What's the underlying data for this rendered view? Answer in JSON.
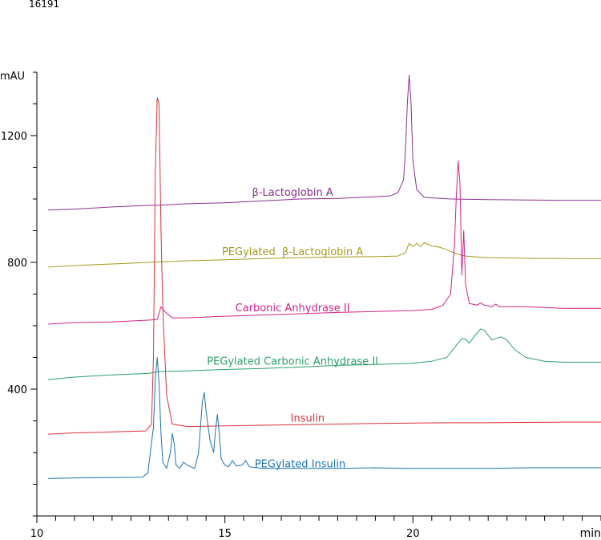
{
  "header": {
    "id": "16191"
  },
  "chart_data": {
    "type": "line",
    "title": "",
    "xlabel": "min",
    "ylabel": "mAU",
    "xlim": [
      10,
      25
    ],
    "ylim": [
      0,
      1400
    ],
    "xticks_labeled": [
      "10",
      "15",
      "20"
    ],
    "yticks_labeled": [
      "400",
      "800",
      "1200"
    ],
    "grid": false,
    "legend": "none",
    "series": [
      {
        "name": "β-Lactoglobin A",
        "color": "#8b2f8f",
        "points": [
          [
            10.3,
            965
          ],
          [
            11,
            968
          ],
          [
            12,
            975
          ],
          [
            13,
            980
          ],
          [
            13.2,
            980
          ],
          [
            14,
            985
          ],
          [
            15,
            988
          ],
          [
            16,
            994
          ],
          [
            17,
            1000
          ],
          [
            18,
            1002
          ],
          [
            19,
            1007
          ],
          [
            19.4,
            1010
          ],
          [
            19.6,
            1020
          ],
          [
            19.75,
            1060
          ],
          [
            19.8,
            1150
          ],
          [
            19.85,
            1300
          ],
          [
            19.9,
            1390
          ],
          [
            19.95,
            1300
          ],
          [
            20.0,
            1120
          ],
          [
            20.1,
            1030
          ],
          [
            20.3,
            1005
          ],
          [
            21,
            1000
          ],
          [
            22,
            998
          ],
          [
            23,
            997
          ],
          [
            24,
            996
          ],
          [
            25,
            996
          ]
        ]
      },
      {
        "name": "PEGylated  β-Lactoglobin A",
        "color": "#a39a1a",
        "points": [
          [
            10.3,
            785
          ],
          [
            11,
            790
          ],
          [
            12,
            795
          ],
          [
            13,
            800
          ],
          [
            14,
            805
          ],
          [
            15,
            808
          ],
          [
            16,
            812
          ],
          [
            17,
            815
          ],
          [
            18,
            817
          ],
          [
            19,
            818
          ],
          [
            19.6,
            820
          ],
          [
            19.8,
            830
          ],
          [
            19.9,
            860
          ],
          [
            20.0,
            850
          ],
          [
            20.1,
            860
          ],
          [
            20.2,
            850
          ],
          [
            20.3,
            862
          ],
          [
            20.5,
            852
          ],
          [
            20.7,
            848
          ],
          [
            20.9,
            840
          ],
          [
            21.0,
            835
          ],
          [
            21.2,
            825
          ],
          [
            21.4,
            820
          ],
          [
            21.6,
            818
          ],
          [
            22,
            815
          ],
          [
            23,
            813
          ],
          [
            24,
            812
          ],
          [
            25,
            812
          ]
        ]
      },
      {
        "name": "Carbonic Anhydrase II",
        "color": "#d6218a",
        "points": [
          [
            10.3,
            605
          ],
          [
            11,
            610
          ],
          [
            12,
            612
          ],
          [
            13,
            618
          ],
          [
            13.2,
            620
          ],
          [
            13.3,
            660
          ],
          [
            13.4,
            645
          ],
          [
            13.6,
            625
          ],
          [
            14,
            625
          ],
          [
            15,
            630
          ],
          [
            16,
            634
          ],
          [
            17,
            638
          ],
          [
            18,
            642
          ],
          [
            19,
            645
          ],
          [
            20,
            648
          ],
          [
            20.5,
            652
          ],
          [
            20.8,
            665
          ],
          [
            21.0,
            700
          ],
          [
            21.1,
            850
          ],
          [
            21.15,
            1000
          ],
          [
            21.2,
            1120
          ],
          [
            21.25,
            1050
          ],
          [
            21.3,
            760
          ],
          [
            21.35,
            900
          ],
          [
            21.4,
            730
          ],
          [
            21.5,
            670
          ],
          [
            21.7,
            665
          ],
          [
            21.8,
            672
          ],
          [
            21.9,
            665
          ],
          [
            22.1,
            660
          ],
          [
            22.2,
            668
          ],
          [
            22.3,
            660
          ],
          [
            23,
            660
          ],
          [
            24,
            655
          ],
          [
            25,
            655
          ]
        ]
      },
      {
        "name": "PEGylated Carbonic Anhydrase II",
        "color": "#2aa06a",
        "points": [
          [
            10.3,
            430
          ],
          [
            11,
            438
          ],
          [
            12,
            445
          ],
          [
            13,
            450
          ],
          [
            13.2,
            455
          ],
          [
            14,
            458
          ],
          [
            15,
            462
          ],
          [
            16,
            465
          ],
          [
            17,
            470
          ],
          [
            18,
            475
          ],
          [
            19,
            478
          ],
          [
            20,
            482
          ],
          [
            20.5,
            488
          ],
          [
            20.9,
            500
          ],
          [
            21.1,
            530
          ],
          [
            21.3,
            560
          ],
          [
            21.4,
            558
          ],
          [
            21.5,
            545
          ],
          [
            21.65,
            570
          ],
          [
            21.8,
            590
          ],
          [
            21.9,
            585
          ],
          [
            22.0,
            570
          ],
          [
            22.1,
            555
          ],
          [
            22.2,
            560
          ],
          [
            22.35,
            565
          ],
          [
            22.5,
            555
          ],
          [
            22.7,
            525
          ],
          [
            23,
            500
          ],
          [
            23.5,
            488
          ],
          [
            24,
            485
          ],
          [
            25,
            485
          ]
        ]
      },
      {
        "name": "Insulin",
        "color": "#e0303a",
        "points": [
          [
            10.3,
            258
          ],
          [
            11,
            262
          ],
          [
            12,
            265
          ],
          [
            12.9,
            268
          ],
          [
            13.05,
            290
          ],
          [
            13.1,
            500
          ],
          [
            13.15,
            1080
          ],
          [
            13.2,
            1320
          ],
          [
            13.25,
            1300
          ],
          [
            13.3,
            900
          ],
          [
            13.35,
            650
          ],
          [
            13.45,
            380
          ],
          [
            13.6,
            290
          ],
          [
            14,
            282
          ],
          [
            15,
            284
          ],
          [
            16,
            286
          ],
          [
            17,
            288
          ],
          [
            18,
            290
          ],
          [
            19,
            292
          ],
          [
            20,
            293
          ],
          [
            21,
            294
          ],
          [
            22,
            294
          ],
          [
            23,
            295
          ],
          [
            24,
            296
          ],
          [
            25,
            296
          ]
        ]
      },
      {
        "name": "PEGylated Insulin",
        "color": "#1a74b8",
        "points": [
          [
            10.3,
            118
          ],
          [
            11,
            120
          ],
          [
            12,
            121
          ],
          [
            12.8,
            122
          ],
          [
            12.95,
            135
          ],
          [
            13.1,
            280
          ],
          [
            13.15,
            430
          ],
          [
            13.2,
            500
          ],
          [
            13.25,
            420
          ],
          [
            13.3,
            260
          ],
          [
            13.35,
            170
          ],
          [
            13.45,
            150
          ],
          [
            13.55,
            200
          ],
          [
            13.6,
            260
          ],
          [
            13.65,
            230
          ],
          [
            13.7,
            160
          ],
          [
            13.8,
            150
          ],
          [
            13.9,
            170
          ],
          [
            14.0,
            160
          ],
          [
            14.2,
            150
          ],
          [
            14.3,
            200
          ],
          [
            14.4,
            360
          ],
          [
            14.45,
            390
          ],
          [
            14.5,
            330
          ],
          [
            14.6,
            240
          ],
          [
            14.7,
            200
          ],
          [
            14.75,
            270
          ],
          [
            14.8,
            320
          ],
          [
            14.85,
            260
          ],
          [
            14.9,
            180
          ],
          [
            15.0,
            160
          ],
          [
            15.1,
            155
          ],
          [
            15.2,
            175
          ],
          [
            15.3,
            158
          ],
          [
            15.45,
            160
          ],
          [
            15.55,
            175
          ],
          [
            15.65,
            155
          ],
          [
            16,
            150
          ],
          [
            17,
            150
          ],
          [
            18,
            150
          ],
          [
            19,
            152
          ],
          [
            20,
            150
          ],
          [
            21,
            150
          ],
          [
            22,
            150
          ],
          [
            23,
            152
          ],
          [
            24,
            152
          ],
          [
            25,
            152
          ]
        ]
      }
    ]
  }
}
